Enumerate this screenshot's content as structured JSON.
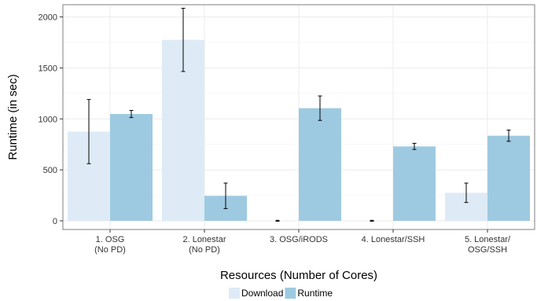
{
  "chart_data": {
    "type": "bar",
    "categories": [
      [
        "1. OSG",
        "(No PD)"
      ],
      [
        "2. Lonestar",
        "(No PD)"
      ],
      [
        "3. OSG/iRODS"
      ],
      [
        "4. Lonestar/SSH"
      ],
      [
        "5. Lonestar/",
        "OSG/SSH"
      ]
    ],
    "series": [
      {
        "name": "Download",
        "values": [
          875,
          1775,
          0,
          0,
          275
        ],
        "err": [
          315,
          310,
          5,
          5,
          95
        ]
      },
      {
        "name": "Runtime",
        "values": [
          1048,
          245,
          1105,
          730,
          835
        ],
        "err": [
          35,
          125,
          120,
          30,
          55
        ]
      }
    ],
    "xlabel": "Resources (Number of Cores)",
    "ylabel": "Runtime (in sec)",
    "ylim": [
      -85,
      2120
    ],
    "yticks": [
      0,
      500,
      1000,
      1500,
      2000
    ],
    "grid": true,
    "legend_position": "bottom",
    "colors": {
      "Download": "#deebf7",
      "Runtime": "#9ecae1",
      "panel_border": "#7f7f7f",
      "grid": "#ebebeb",
      "error_bar": "#000000"
    }
  }
}
